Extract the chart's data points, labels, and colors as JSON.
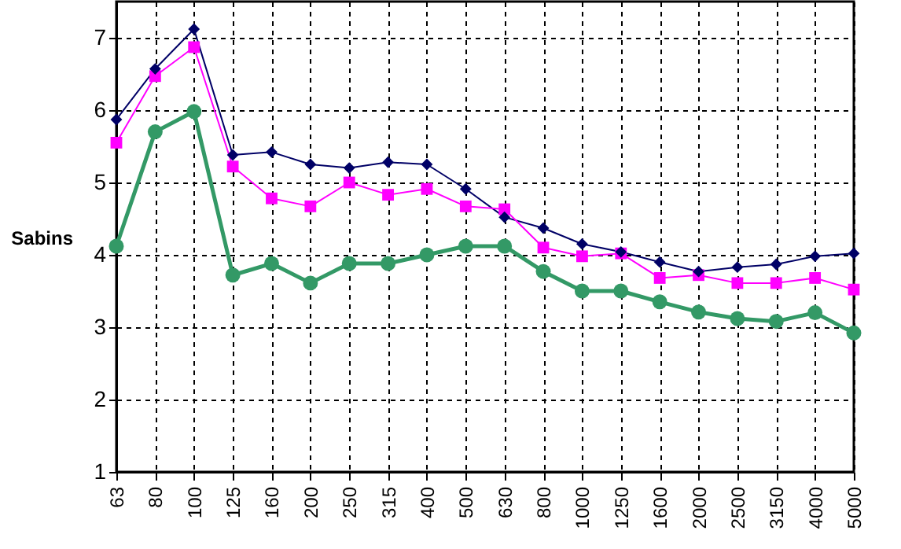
{
  "chart_data": {
    "type": "line",
    "ylabel": "Sabins",
    "categories": [
      "63",
      "80",
      "100",
      "125",
      "160",
      "200",
      "250",
      "315",
      "400",
      "500",
      "630",
      "800",
      "1000",
      "1250",
      "1600",
      "2000",
      "2500",
      "3150",
      "4000",
      "5000"
    ],
    "series": [
      {
        "color": "#000066",
        "marker": "diamond",
        "values": [
          5.87,
          6.57,
          7.12,
          5.38,
          5.42,
          5.25,
          5.2,
          5.28,
          5.25,
          4.91,
          4.52,
          4.37,
          4.15,
          4.04,
          3.9,
          3.77,
          3.83,
          3.87,
          3.98,
          4.02
        ]
      },
      {
        "color": "#ff00ff",
        "marker": "square",
        "values": [
          5.55,
          6.47,
          6.87,
          5.22,
          4.78,
          4.67,
          5.0,
          4.83,
          4.91,
          4.67,
          4.63,
          4.1,
          3.98,
          4.02,
          3.68,
          3.72,
          3.61,
          3.61,
          3.68,
          3.52
        ]
      },
      {
        "color": "#339966",
        "marker": "circle",
        "values": [
          4.12,
          5.7,
          5.98,
          3.72,
          3.88,
          3.61,
          3.88,
          3.88,
          4.0,
          4.12,
          4.12,
          3.77,
          3.5,
          3.5,
          3.35,
          3.21,
          3.12,
          3.08,
          3.2,
          2.92
        ]
      }
    ],
    "ylim": [
      1,
      7.5
    ],
    "yticks": [
      1,
      2,
      3,
      4,
      5,
      6,
      7
    ],
    "grid": true
  }
}
